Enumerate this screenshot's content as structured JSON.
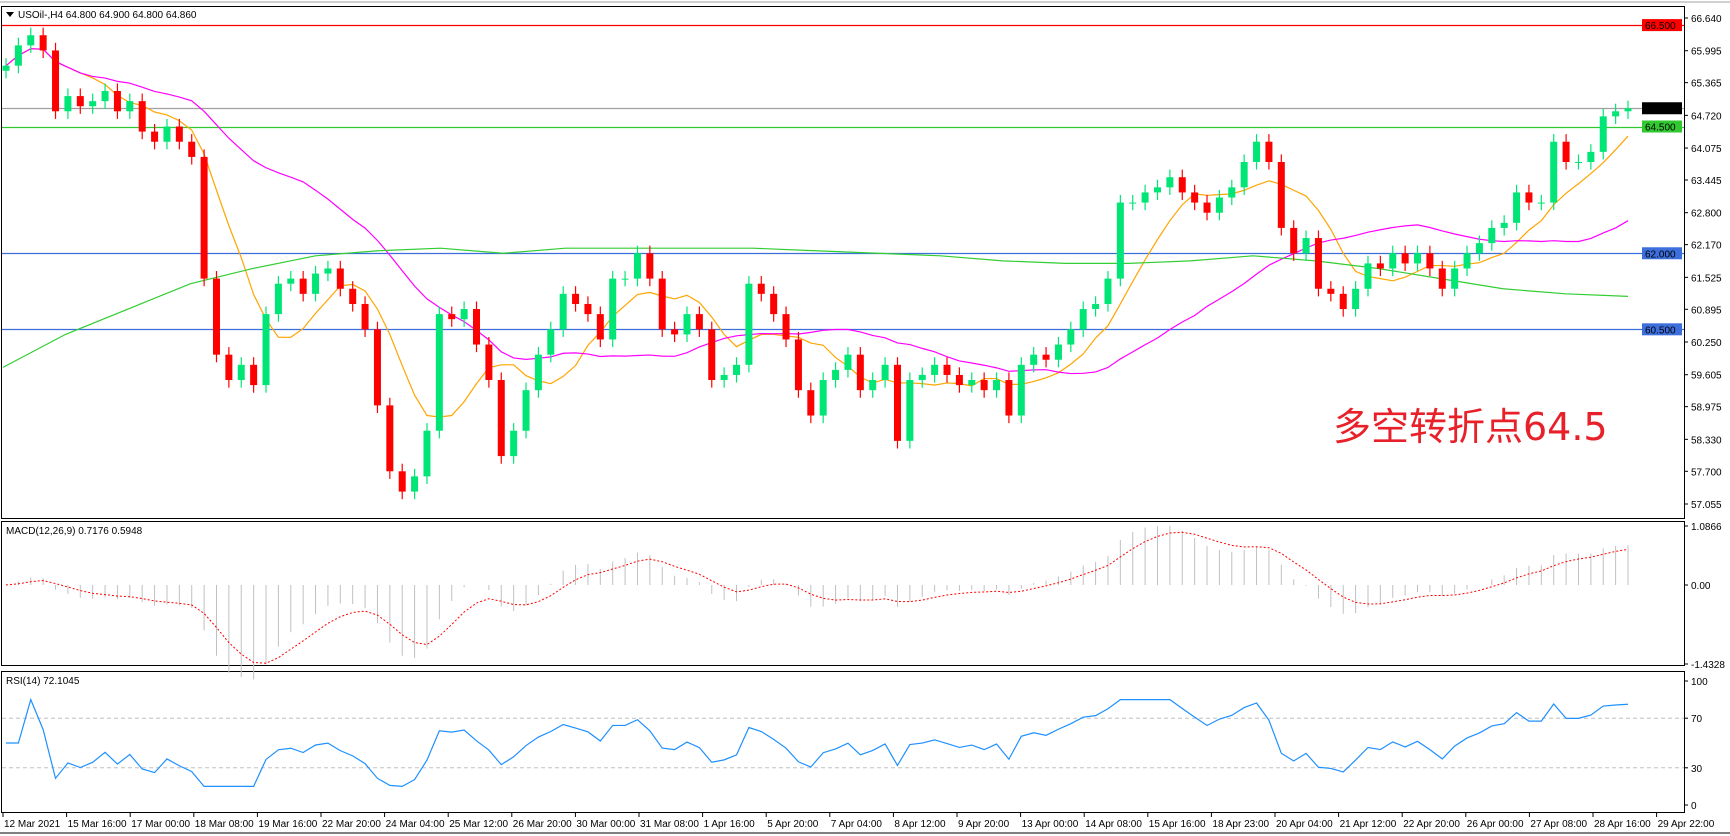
{
  "header": {
    "symbol_info": "USOil-,H4  64.800 64.900 64.800 64.860",
    "menu_icon": "triangle-down-icon"
  },
  "annotation": "多空转折点64.5",
  "macd_label": "MACD(12,26,9) 0.7176 0.5948",
  "rsi_label": "RSI(14) 72.1045",
  "colors": {
    "bull": "#00e676",
    "bear": "#ff0000",
    "ma_fast": "#ffa500",
    "ma_mid": "#ff00ff",
    "ma_slow": "#32cd32",
    "rsi": "#1e90ff",
    "macd_signal": "#ff0000",
    "macd_hist": "#c0c0c0"
  },
  "chart_data": {
    "type": "candlestick",
    "symbol": "USOil-",
    "timeframe": "H4",
    "ylim": [
      57.055,
      66.64
    ],
    "y_ticks": [
      "66.640",
      "65.995",
      "65.365",
      "64.720",
      "64.075",
      "63.445",
      "62.800",
      "62.170",
      "61.525",
      "60.895",
      "60.250",
      "59.605",
      "58.975",
      "58.330",
      "57.700",
      "57.055"
    ],
    "x_ticks": [
      "12 Mar 2021",
      "15 Mar 16:00",
      "17 Mar 00:00",
      "18 Mar 08:00",
      "19 Mar 16:00",
      "22 Mar 20:00",
      "24 Mar 04:00",
      "25 Mar 12:00",
      "26 Mar 20:00",
      "30 Mar 00:00",
      "31 Mar 08:00",
      "1 Apr 16:00",
      "5 Apr 20:00",
      "7 Apr 04:00",
      "8 Apr 12:00",
      "9 Apr 20:00",
      "13 Apr 00:00",
      "14 Apr 08:00",
      "15 Apr 16:00",
      "18 Apr 23:00",
      "20 Apr 04:00",
      "21 Apr 12:00",
      "22 Apr 20:00",
      "26 Apr 00:00",
      "27 Apr 08:00",
      "28 Apr 16:00",
      "29 Apr 22:00"
    ],
    "closes": [
      65.7,
      66.1,
      66.3,
      66.0,
      64.8,
      65.1,
      64.9,
      65.0,
      65.2,
      64.8,
      65.0,
      64.4,
      64.2,
      64.5,
      64.2,
      63.9,
      61.5,
      60.0,
      59.5,
      59.8,
      59.4,
      60.8,
      61.4,
      61.5,
      61.2,
      61.6,
      61.7,
      61.3,
      61.0,
      60.5,
      59.0,
      57.7,
      57.3,
      57.6,
      58.5,
      60.8,
      60.7,
      60.9,
      60.2,
      59.5,
      58.0,
      58.5,
      59.3,
      60.0,
      60.5,
      61.2,
      61.0,
      60.8,
      60.3,
      61.5,
      61.5,
      62.0,
      61.5,
      60.5,
      60.4,
      60.8,
      60.5,
      59.5,
      59.6,
      59.8,
      61.4,
      61.2,
      60.8,
      60.3,
      59.3,
      58.8,
      59.5,
      59.7,
      60.0,
      59.3,
      59.5,
      59.8,
      58.3,
      59.5,
      59.6,
      59.8,
      59.6,
      59.4,
      59.5,
      59.3,
      59.5,
      58.8,
      59.8,
      60.0,
      59.9,
      60.2,
      60.5,
      60.9,
      61.0,
      61.5,
      63.0,
      63.0,
      63.2,
      63.3,
      63.5,
      63.2,
      63.0,
      62.8,
      63.1,
      63.3,
      63.8,
      64.2,
      63.8,
      62.5,
      62.0,
      62.3,
      61.3,
      61.2,
      60.9,
      61.3,
      61.8,
      61.7,
      62.0,
      61.8,
      62.0,
      61.7,
      61.3,
      61.7,
      62.0,
      62.2,
      62.5,
      62.6,
      63.2,
      63.0,
      63.0,
      64.2,
      63.8,
      63.8,
      64.0,
      64.7,
      64.8,
      64.86
    ],
    "ma_slow_at_x_ticks": [
      59.75,
      60.4,
      60.9,
      61.4,
      61.7,
      61.95,
      62.05,
      62.1,
      62.0,
      62.1,
      62.1,
      62.1,
      62.1,
      62.05,
      62.0,
      61.95,
      61.85,
      61.8,
      61.8,
      61.85,
      61.95,
      61.85,
      61.7,
      61.5,
      61.3,
      61.2,
      61.15
    ],
    "levels": [
      {
        "price": "66.500",
        "color": "#ff0000"
      },
      {
        "price": "64.860",
        "color": "#000000",
        "line": "#a0a0a0"
      },
      {
        "price": "64.500",
        "color": "#32c832"
      },
      {
        "price": "62.000",
        "color": "#3c6edc"
      },
      {
        "price": "60.500",
        "color": "#3c6edc"
      }
    ],
    "macd": {
      "ylim": [
        -1.4328,
        1.0866
      ],
      "ticks": [
        "1.0866",
        "0.00",
        "-1.4328"
      ]
    },
    "rsi": {
      "ylim": [
        0,
        100
      ],
      "ticks": [
        "100",
        "70",
        "30",
        "0"
      ],
      "levels": [
        70,
        30
      ]
    }
  }
}
